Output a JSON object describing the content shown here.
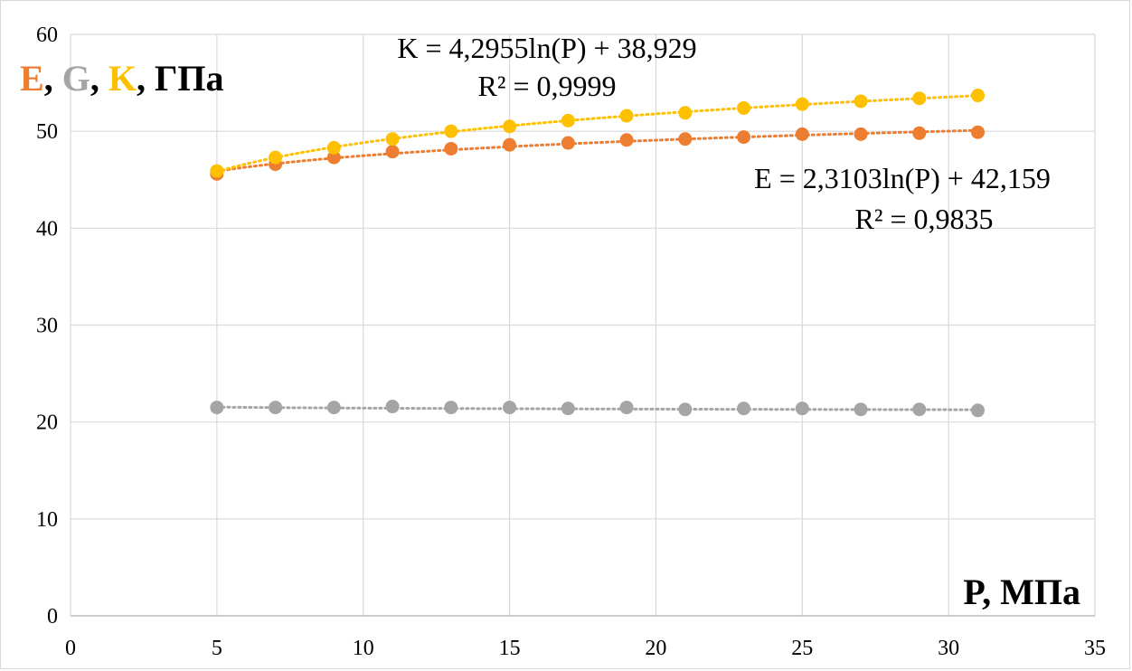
{
  "chart_data": {
    "type": "scatter",
    "x_label": "P, МПа",
    "y_label_parts": [
      {
        "text": "E",
        "color": "#ED7D31"
      },
      {
        "text": ", ",
        "color": "#000000"
      },
      {
        "text": "G",
        "color": "#A5A5A5"
      },
      {
        "text": ", ",
        "color": "#000000"
      },
      {
        "text": "K",
        "color": "#FFC000"
      },
      {
        "text": ", ГПа",
        "color": "#000000"
      }
    ],
    "xlim": [
      0,
      35
    ],
    "ylim": [
      0,
      60
    ],
    "x_ticks": [
      "0",
      "5",
      "10",
      "15",
      "20",
      "25",
      "30",
      "35"
    ],
    "y_ticks": [
      "0",
      "10",
      "20",
      "30",
      "40",
      "50",
      "60"
    ],
    "x_tick_values": [
      0,
      5,
      10,
      15,
      20,
      25,
      30,
      35
    ],
    "y_tick_values": [
      0,
      10,
      20,
      30,
      40,
      50,
      60
    ],
    "grid": true,
    "x": [
      5,
      7,
      9,
      11,
      13,
      15,
      17,
      19,
      21,
      23,
      25,
      27,
      29,
      31
    ],
    "series": [
      {
        "key": "E",
        "color": "#ED7D31",
        "values": [
          45.6,
          46.6,
          47.3,
          47.9,
          48.2,
          48.6,
          48.8,
          49.1,
          49.2,
          49.4,
          49.7,
          49.7,
          49.8,
          49.9
        ],
        "trend": {
          "a": 2.3103,
          "b": 42.159
        }
      },
      {
        "key": "G",
        "color": "#A5A5A5",
        "values": [
          21.5,
          21.5,
          21.5,
          21.6,
          21.5,
          21.5,
          21.4,
          21.5,
          21.3,
          21.4,
          21.4,
          21.3,
          21.3,
          21.2
        ],
        "trend": {
          "a": -0.15,
          "b": 21.78
        }
      },
      {
        "key": "K",
        "color": "#FFC000",
        "values": [
          45.9,
          47.3,
          48.3,
          49.2,
          50.0,
          50.5,
          51.1,
          51.6,
          51.9,
          52.4,
          52.8,
          53.1,
          53.4,
          53.7
        ],
        "trend": {
          "a": 4.2955,
          "b": 38.929
        }
      }
    ],
    "annotations": {
      "k_equation": "K = 4,2955ln(P) + 38,929",
      "k_r2": "R² = 0,9999",
      "e_equation": "E = 2,3103ln(P) + 42,159",
      "e_r2": "R² = 0,9835"
    }
  }
}
